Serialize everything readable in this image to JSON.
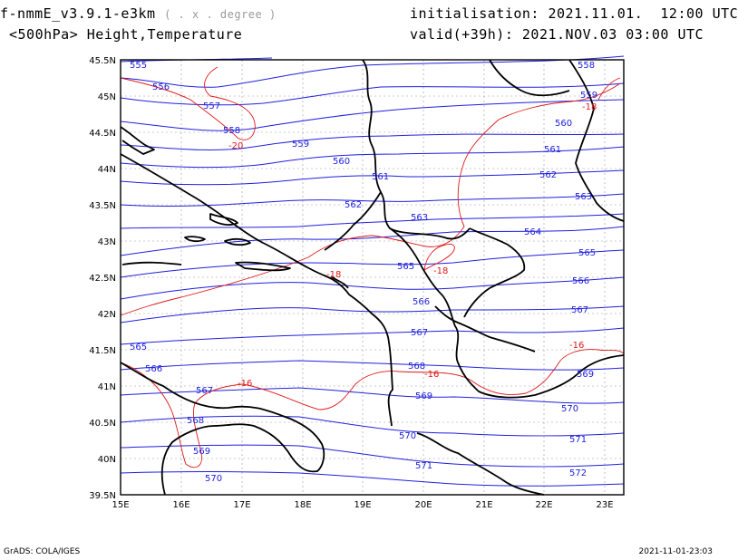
{
  "header": {
    "model": "f-nmmE_v3.9.1-e3km",
    "projection": "( . x . degree )",
    "field": "<500hPa> Height,Temperature",
    "init_label": "initialisation:",
    "init_value": "2021.11.01.  12:00 UTC",
    "valid_label": "valid(+39h):",
    "valid_value": "2021.NOV.03 03:00 UTC"
  },
  "footer": {
    "left": "GrADS: COLA/IGES",
    "right": "2021-11-01-23:03"
  },
  "axes": {
    "lon_labels": [
      "15E",
      "16E",
      "17E",
      "18E",
      "19E",
      "20E",
      "21E",
      "22E",
      "23E"
    ],
    "lat_labels": [
      "45.5N",
      "45N",
      "44.5N",
      "44N",
      "43.5N",
      "43N",
      "42.5N",
      "42N",
      "41.5N",
      "41N",
      "40.5N",
      "40N",
      "39.5N"
    ]
  },
  "colors": {
    "height": "#2020e0",
    "temperature": "#e01818",
    "coast": "#000000",
    "grid": "#9a9a9a"
  },
  "height_contours": [
    "555",
    "556",
    "557",
    "558",
    "559",
    "560",
    "561",
    "562",
    "563",
    "564",
    "565",
    "566",
    "567",
    "568",
    "569",
    "570",
    "571",
    "572"
  ],
  "temperature_contours": [
    "-20",
    "-18",
    "-18",
    "-18",
    "-16",
    "-16",
    "-16"
  ]
}
